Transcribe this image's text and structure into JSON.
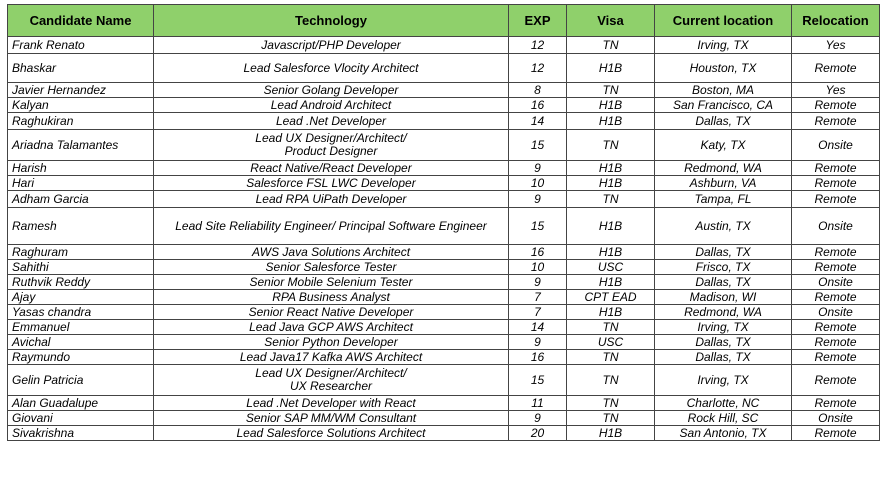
{
  "headers": [
    "Candidate Name",
    "Technology",
    "EXP",
    "Visa",
    "Current location",
    "Relocation"
  ],
  "rows": [
    {
      "name": "Frank Renato",
      "tech": "Javascript/PHP Developer",
      "exp": "12",
      "visa": "TN",
      "loc": "Irving, TX",
      "reloc": "Yes",
      "h": "tall0"
    },
    {
      "name": "Bhaskar",
      "tech": "Lead Salesforce Vlocity Architect",
      "exp": "12",
      "visa": "H1B",
      "loc": "Houston, TX",
      "reloc": "Remote",
      "h": "tall"
    },
    {
      "name": "Javier Hernandez",
      "tech": "Senior Golang Developer",
      "exp": "8",
      "visa": "TN",
      "loc": "Boston, MA",
      "reloc": "Yes",
      "h": ""
    },
    {
      "name": "Kalyan",
      "tech": "Lead Android Architect",
      "exp": "16",
      "visa": "H1B",
      "loc": "San Francisco, CA",
      "reloc": "Remote",
      "h": ""
    },
    {
      "name": "Raghukiran",
      "tech": "Lead .Net Developer",
      "exp": "14",
      "visa": "H1B",
      "loc": "Dallas, TX",
      "reloc": "Remote",
      "h": "tall0"
    },
    {
      "name": "Ariadna Talamantes",
      "tech": "Lead UX Designer/Architect/\nProduct Designer",
      "exp": "15",
      "visa": "TN",
      "loc": "Katy, TX",
      "reloc": "Onsite",
      "h": "tall2"
    },
    {
      "name": "Harish",
      "tech": "React Native/React Developer",
      "exp": "9",
      "visa": "H1B",
      "loc": "Redmond, WA",
      "reloc": "Remote",
      "h": ""
    },
    {
      "name": "Hari",
      "tech": "Salesforce FSL LWC Developer",
      "exp": "10",
      "visa": "H1B",
      "loc": "Ashburn, VA",
      "reloc": "Remote",
      "h": ""
    },
    {
      "name": "Adham Garcia",
      "tech": "Lead RPA UiPath Developer",
      "exp": "9",
      "visa": "TN",
      "loc": "Tampa, FL",
      "reloc": "Remote",
      "h": "tall0"
    },
    {
      "name": "Ramesh",
      "tech": "Lead Site Reliability Engineer/ Principal Software Engineer",
      "exp": "15",
      "visa": "H1B",
      "loc": "Austin, TX",
      "reloc": "Onsite",
      "h": "tall3"
    },
    {
      "name": "Raghuram",
      "tech": "AWS Java Solutions Architect",
      "exp": "16",
      "visa": "H1B",
      "loc": "Dallas, TX",
      "reloc": "Remote",
      "h": ""
    },
    {
      "name": "Sahithi",
      "tech": "Senior Salesforce Tester",
      "exp": "10",
      "visa": "USC",
      "loc": "Frisco, TX",
      "reloc": "Remote",
      "h": ""
    },
    {
      "name": "Ruthvik Reddy",
      "tech": "Senior Mobile Selenium Tester",
      "exp": "9",
      "visa": "H1B",
      "loc": "Dallas, TX",
      "reloc": "Onsite",
      "h": ""
    },
    {
      "name": "Ajay",
      "tech": "RPA Business Analyst",
      "exp": "7",
      "visa": "CPT EAD",
      "loc": "Madison, WI",
      "reloc": "Remote",
      "h": ""
    },
    {
      "name": "Yasas chandra",
      "tech": "Senior React Native Developer",
      "exp": "7",
      "visa": "H1B",
      "loc": "Redmond, WA",
      "reloc": "Onsite",
      "h": ""
    },
    {
      "name": "Emmanuel",
      "tech": "Lead Java GCP AWS Architect",
      "exp": "14",
      "visa": "TN",
      "loc": "Irving, TX",
      "reloc": "Remote",
      "h": ""
    },
    {
      "name": "Avichal",
      "tech": "Senior Python Developer",
      "exp": "9",
      "visa": "USC",
      "loc": "Dallas, TX",
      "reloc": "Remote",
      "h": ""
    },
    {
      "name": "Raymundo",
      "tech": "Lead Java17 Kafka AWS Architect",
      "exp": "16",
      "visa": "TN",
      "loc": "Dallas, TX",
      "reloc": "Remote",
      "h": ""
    },
    {
      "name": "Gelin Patricia",
      "tech": "Lead UX Designer/Architect/\nUX Researcher",
      "exp": "15",
      "visa": "TN",
      "loc": "Irving, TX",
      "reloc": "Remote",
      "h": "tall2"
    },
    {
      "name": "Alan Guadalupe",
      "tech": "Lead .Net Developer with React",
      "exp": "11",
      "visa": "TN",
      "loc": "Charlotte, NC",
      "reloc": "Remote",
      "h": ""
    },
    {
      "name": "Giovani",
      "tech": "Senior SAP MM/WM Consultant",
      "exp": "9",
      "visa": "TN",
      "loc": "Rock Hill, SC",
      "reloc": "Onsite",
      "h": ""
    },
    {
      "name": "Sivakrishna",
      "tech": "Lead Salesforce Solutions Architect",
      "exp": "20",
      "visa": "H1B",
      "loc": "San Antonio, TX",
      "reloc": "Remote",
      "h": ""
    }
  ]
}
